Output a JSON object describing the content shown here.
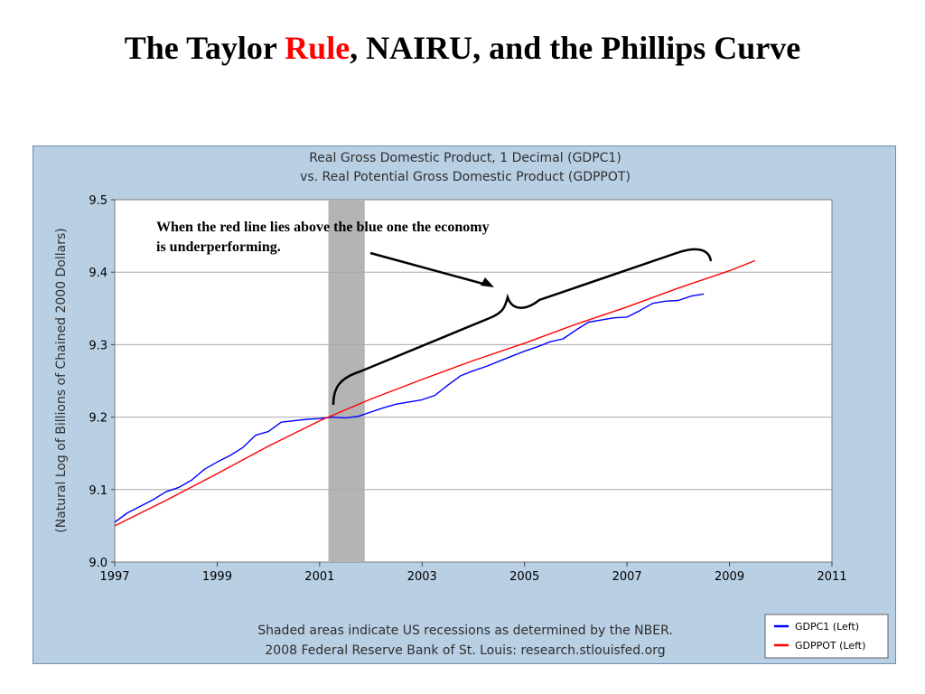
{
  "slide": {
    "title_part1": "The Taylor ",
    "title_accent": "Rule",
    "title_part2": ", NAIRU, and the Phillips Curve",
    "accent_color": "#ff0000"
  },
  "chart_data": {
    "type": "line",
    "title": "Real Gross Domestic Product, 1 Decimal (GDPC1)",
    "subtitle": "vs.  Real Potential Gross Domestic Product (GDPPOT)",
    "ylabel": "(Natural Log of Billions of Chained 2000 Dollars)",
    "xlabel": "",
    "xlim": [
      1997,
      2011
    ],
    "ylim": [
      9.0,
      9.5
    ],
    "x_ticks": [
      "1997",
      "1999",
      "2001",
      "2003",
      "2005",
      "2007",
      "2009",
      "2011"
    ],
    "y_ticks": [
      "9.0",
      "9.1",
      "9.2",
      "9.3",
      "9.4",
      "9.5"
    ],
    "grid": "horizontal",
    "recession_shading": {
      "start": 2001.17,
      "end": 2001.88,
      "color": "#b4b4b4"
    },
    "series": [
      {
        "name": "GDPC1 (Left)",
        "color": "#0000ff",
        "x": [
          1997.0,
          1997.25,
          1997.5,
          1997.75,
          1998.0,
          1998.25,
          1998.5,
          1998.75,
          1999.0,
          1999.25,
          1999.5,
          1999.75,
          2000.0,
          2000.25,
          2000.5,
          2000.75,
          2001.0,
          2001.25,
          2001.5,
          2001.75,
          2002.0,
          2002.25,
          2002.5,
          2002.75,
          2003.0,
          2003.25,
          2003.5,
          2003.75,
          2004.0,
          2004.25,
          2004.5,
          2004.75,
          2005.0,
          2005.25,
          2005.5,
          2005.75,
          2006.0,
          2006.25,
          2006.5,
          2006.75,
          2007.0,
          2007.25,
          2007.5,
          2007.75,
          2008.0,
          2008.25,
          2008.5
        ],
        "values": [
          9.055,
          9.068,
          9.077,
          9.086,
          9.097,
          9.103,
          9.113,
          9.128,
          9.138,
          9.147,
          9.158,
          9.175,
          9.18,
          9.193,
          9.195,
          9.197,
          9.198,
          9.2,
          9.199,
          9.201,
          9.207,
          9.213,
          9.218,
          9.221,
          9.224,
          9.23,
          9.244,
          9.257,
          9.264,
          9.27,
          9.277,
          9.284,
          9.291,
          9.297,
          9.304,
          9.308,
          9.32,
          9.331,
          9.334,
          9.337,
          9.338,
          9.347,
          9.357,
          9.36,
          9.361,
          9.367,
          9.37
        ]
      },
      {
        "name": "GDPPOT (Left)",
        "color": "#ff0000",
        "x": [
          1997.0,
          1998.0,
          1999.0,
          2000.0,
          2001.0,
          2002.0,
          2003.0,
          2004.0,
          2005.0,
          2006.0,
          2007.0,
          2008.0,
          2009.0,
          2009.5
        ],
        "values": [
          9.05,
          9.085,
          9.122,
          9.16,
          9.195,
          9.225,
          9.252,
          9.278,
          9.302,
          9.328,
          9.352,
          9.378,
          9.402,
          9.416
        ]
      }
    ],
    "annotation": {
      "line1": "When the red line lies above the blue one the economy",
      "line2": "is underperforming."
    },
    "footer": {
      "line1": "Shaded areas indicate US recessions as determined by the NBER.",
      "line2": "2008 Federal Reserve Bank of St. Louis: research.stlouisfed.org"
    },
    "legend_position": "bottom-right"
  }
}
